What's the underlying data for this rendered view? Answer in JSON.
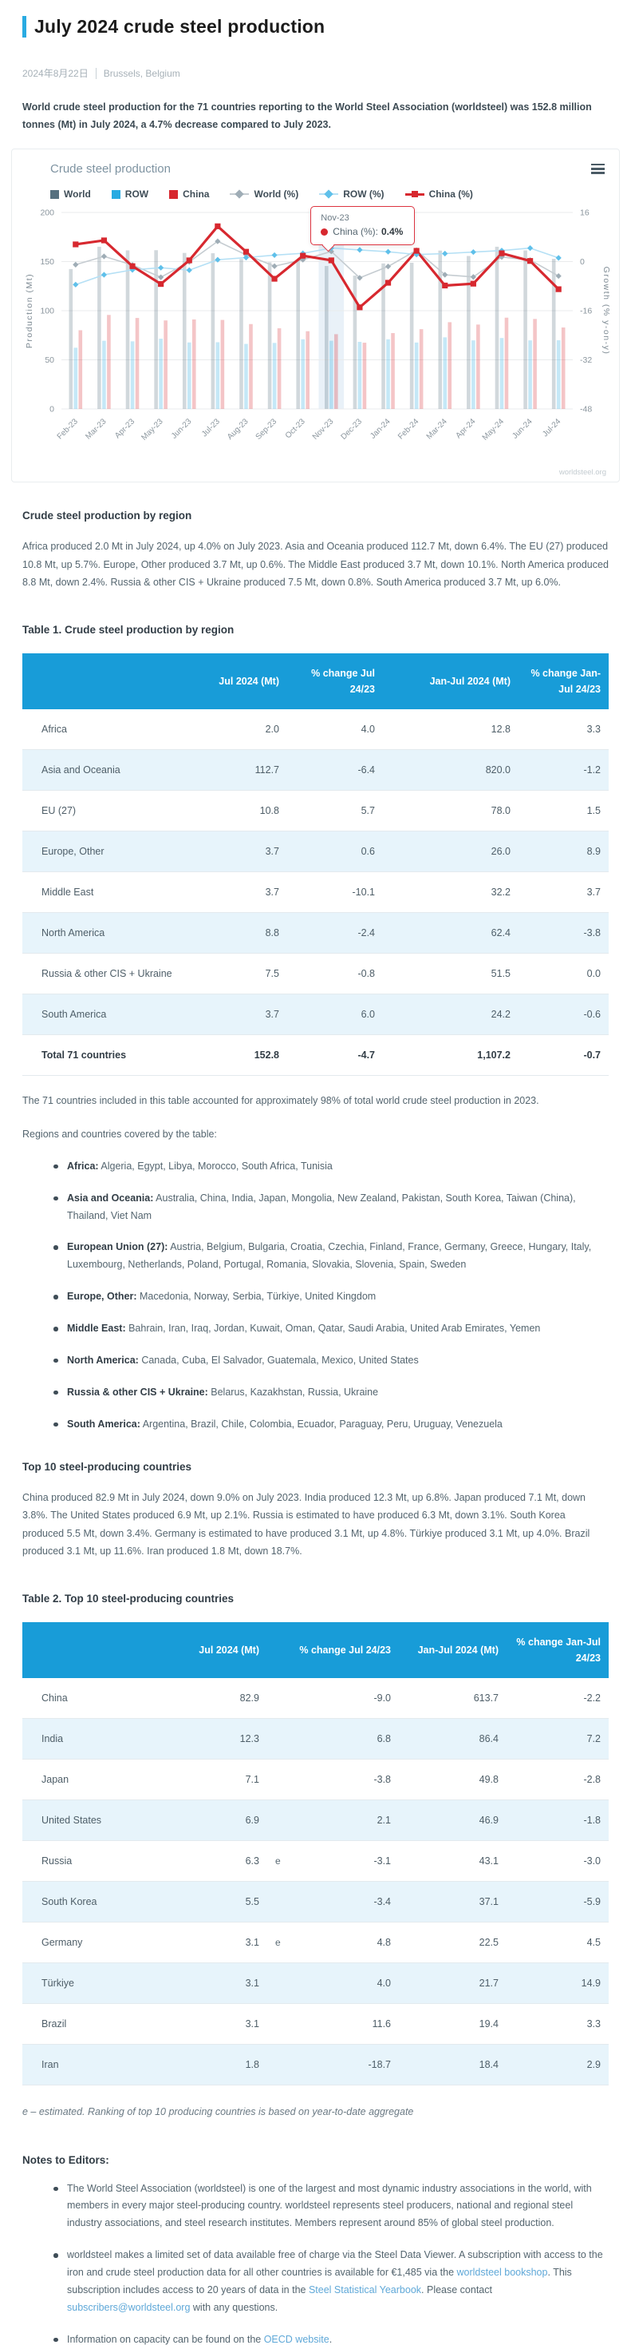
{
  "header": {
    "title": "July 2024 crude steel production",
    "date": "2024年8月22日",
    "location": "Brussels, Belgium"
  },
  "intro": "World crude steel production for the 71 countries reporting to the World Steel Association (worldsteel) was 152.8 million tonnes (Mt) in July 2024, a 4.7% decrease compared to July 2023.",
  "chart_data": {
    "type": "bar+line",
    "title": "Crude steel production",
    "categories": [
      "Feb-23",
      "Mar-23",
      "Apr-23",
      "May-23",
      "Jun-23",
      "Jul-23",
      "Aug-23",
      "Sep-23",
      "Oct-23",
      "Nov-23",
      "Dec-23",
      "Jan-24",
      "Feb-24",
      "Mar-24",
      "Apr-24",
      "May-24",
      "Jun-24",
      "Jul-24"
    ],
    "bar_series": [
      {
        "name": "World",
        "color": "#56707f",
        "values": [
          142.4,
          165.1,
          161.4,
          161.6,
          158.8,
          158.5,
          152.6,
          149.3,
          150.0,
          145.5,
          135.7,
          148.1,
          148.8,
          161.2,
          155.7,
          165.1,
          161.4,
          152.8
        ]
      },
      {
        "name": "ROW",
        "color": "#29abe2",
        "values": [
          62.3,
          69.4,
          68.8,
          71.5,
          67.7,
          67.9,
          66.2,
          67.2,
          70.9,
          69.4,
          68.3,
          70.9,
          67.6,
          72.9,
          69.8,
          72.2,
          69.8,
          69.9
        ]
      },
      {
        "name": "China",
        "color": "#d7282f",
        "values": [
          80.1,
          95.7,
          92.6,
          90.1,
          91.1,
          90.6,
          86.4,
          82.1,
          79.1,
          76.1,
          67.4,
          77.2,
          81.2,
          88.3,
          85.9,
          92.9,
          91.6,
          82.9
        ]
      }
    ],
    "line_series": [
      {
        "name": "World (%)",
        "color": "#c5ccd1",
        "marker": "#9fadb6",
        "marker_shape": "diamond",
        "values": [
          -1.0,
          1.7,
          -1.1,
          -5.1,
          -0.1,
          6.6,
          2.2,
          -1.5,
          0.6,
          3.3,
          -5.3,
          -1.6,
          3.7,
          -4.3,
          -5.0,
          1.5,
          0.5,
          -4.7
        ]
      },
      {
        "name": "ROW (%)",
        "color": "#b5e0f5",
        "marker": "#5fc0ea",
        "marker_shape": "diamond",
        "values": [
          -7.5,
          -4.3,
          -2.7,
          -2.0,
          -2.8,
          0.6,
          1.3,
          2.1,
          2.7,
          4.4,
          3.8,
          3.2,
          2.3,
          2.6,
          3.1,
          3.6,
          4.4,
          1.2
        ]
      },
      {
        "name": "China (%)",
        "color": "#d7282f",
        "marker": "#d7282f",
        "marker_shape": "square",
        "values": [
          5.6,
          6.9,
          -1.5,
          -7.3,
          0.4,
          11.5,
          3.2,
          -5.6,
          1.9,
          0.4,
          -14.9,
          -6.9,
          3.5,
          -7.8,
          -7.2,
          2.7,
          0.2,
          -9.0
        ]
      }
    ],
    "left_axis": {
      "label": "Production (Mt)",
      "ticks": [
        0,
        50,
        100,
        150,
        200
      ],
      "range": [
        0,
        200
      ]
    },
    "right_axis": {
      "label": "Growth (% y-on-y)",
      "ticks": [
        -48,
        -32,
        -16,
        0,
        16
      ],
      "range": [
        -48,
        16
      ]
    },
    "highlight_category": "Nov-23",
    "tooltip": {
      "title": "Nov-23",
      "series_label": "China (%):",
      "value": "0.4%"
    },
    "watermark": "worldsteel.org"
  },
  "sections": {
    "region": {
      "heading": "Crude steel production by region",
      "body": "Africa produced 2.0 Mt in July 2024, up 4.0% on July 2023. Asia and Oceania produced 112.7 Mt, down 6.4%. The EU (27) produced 10.8 Mt, up 5.7%. Europe, Other produced 3.7 Mt, up 0.6%. The Middle East produced 3.7 Mt, down 10.1%. North America produced 8.8 Mt, down 2.4%. Russia & other CIS + Ukraine produced 7.5 Mt, down 0.8%. South America produced 3.7 Mt, up 6.0%."
    },
    "top10": {
      "heading": "Top 10 steel-producing countries",
      "body": "China produced 82.9 Mt in July 2024, down 9.0% on July 2023. India produced 12.3 Mt, up 6.8%. Japan produced 7.1 Mt, down 3.8%. The United States produced 6.9 Mt, up 2.1%. Russia is estimated to have produced 6.3 Mt, down 3.1%. South Korea produced 5.5 Mt, down 3.4%. Germany is estimated to have produced 3.1 Mt, up 4.8%. Türkiye produced 3.1 Mt, up 4.0%. Brazil produced 3.1 Mt, up 11.6%. Iran produced 1.8 Mt, down 18.7%."
    }
  },
  "table1": {
    "title": "Table 1. Crude steel production by region",
    "columns": [
      "",
      "Jul 2024 (Mt)",
      "% change Jul 24/23",
      "Jan-Jul 2024 (Mt)",
      "% change Jan-Jul 24/23"
    ],
    "rows": [
      [
        "Africa",
        "2.0",
        "4.0",
        "12.8",
        "3.3"
      ],
      [
        "Asia and Oceania",
        "112.7",
        "-6.4",
        "820.0",
        "-1.2"
      ],
      [
        "EU (27)",
        "10.8",
        "5.7",
        "78.0",
        "1.5"
      ],
      [
        "Europe, Other",
        "3.7",
        "0.6",
        "26.0",
        "8.9"
      ],
      [
        "Middle East",
        "3.7",
        "-10.1",
        "32.2",
        "3.7"
      ],
      [
        "North America",
        "8.8",
        "-2.4",
        "62.4",
        "-3.8"
      ],
      [
        "Russia & other CIS + Ukraine",
        "7.5",
        "-0.8",
        "51.5",
        "0.0"
      ],
      [
        "South America",
        "3.7",
        "6.0",
        "24.2",
        "-0.6"
      ]
    ],
    "total": [
      "Total 71 countries",
      "152.8",
      "-4.7",
      "1,107.2",
      "-0.7"
    ],
    "footnote": "The 71 countries included in this table accounted for approximately 98% of total world crude steel production in 2023."
  },
  "regions": {
    "intro": "Regions and countries covered by the table:",
    "items": [
      {
        "label": "Africa:",
        "text": " Algeria, Egypt, Libya, Morocco, South Africa, Tunisia"
      },
      {
        "label": "Asia and Oceania:",
        "text": " Australia, China, India, Japan, Mongolia, New Zealand, Pakistan, South Korea, Taiwan (China), Thailand, Viet Nam"
      },
      {
        "label": "European Union (27):",
        "text": " Austria, Belgium, Bulgaria, Croatia, Czechia, Finland, France, Germany, Greece, Hungary, Italy, Luxembourg, Netherlands, Poland, Portugal, Romania, Slovakia, Slovenia, Spain, Sweden"
      },
      {
        "label": "Europe, Other:",
        "text": " Macedonia, Norway, Serbia, Türkiye, United Kingdom"
      },
      {
        "label": "Middle East:",
        "text": " Bahrain, Iran, Iraq, Jordan, Kuwait, Oman, Qatar, Saudi Arabia, United Arab Emirates, Yemen"
      },
      {
        "label": "North America:",
        "text": " Canada, Cuba, El Salvador, Guatemala, Mexico, United States"
      },
      {
        "label": "Russia & other CIS + Ukraine:",
        "text": " Belarus, Kazakhstan, Russia, Ukraine"
      },
      {
        "label": "South America:",
        "text": " Argentina, Brazil, Chile, Colombia, Ecuador, Paraguay, Peru, Uruguay, Venezuela"
      }
    ]
  },
  "table2": {
    "title": "Table 2. Top 10 steel-producing countries",
    "columns": [
      "",
      "Jul 2024 (Mt)",
      "% change Jul 24/23",
      "Jan-Jul 2024 (Mt)",
      "% change Jan-Jul 24/23"
    ],
    "rows": [
      {
        "name": "China",
        "jul": "82.9",
        "e": false,
        "chg": "-9.0",
        "ytd": "613.7",
        "ytd_chg": "-2.2"
      },
      {
        "name": "India",
        "jul": "12.3",
        "e": false,
        "chg": "6.8",
        "ytd": "86.4",
        "ytd_chg": "7.2"
      },
      {
        "name": "Japan",
        "jul": "7.1",
        "e": false,
        "chg": "-3.8",
        "ytd": "49.8",
        "ytd_chg": "-2.8"
      },
      {
        "name": "United States",
        "jul": "6.9",
        "e": false,
        "chg": "2.1",
        "ytd": "46.9",
        "ytd_chg": "-1.8"
      },
      {
        "name": "Russia",
        "jul": "6.3",
        "e": true,
        "chg": "-3.1",
        "ytd": "43.1",
        "ytd_chg": "-3.0"
      },
      {
        "name": "South Korea",
        "jul": "5.5",
        "e": false,
        "chg": "-3.4",
        "ytd": "37.1",
        "ytd_chg": "-5.9"
      },
      {
        "name": "Germany",
        "jul": "3.1",
        "e": true,
        "chg": "4.8",
        "ytd": "22.5",
        "ytd_chg": "4.5"
      },
      {
        "name": "Türkiye",
        "jul": "3.1",
        "e": false,
        "chg": "4.0",
        "ytd": "21.7",
        "ytd_chg": "14.9"
      },
      {
        "name": "Brazil",
        "jul": "3.1",
        "e": false,
        "chg": "11.6",
        "ytd": "19.4",
        "ytd_chg": "3.3"
      },
      {
        "name": "Iran",
        "jul": "1.8",
        "e": false,
        "chg": "-18.7",
        "ytd": "18.4",
        "ytd_chg": "2.9"
      }
    ],
    "note": "e – estimated. Ranking of top 10 producing countries is based on year-to-date aggregate"
  },
  "notes": {
    "heading": "Notes to Editors:",
    "bullets": [
      [
        {
          "t": "The World Steel Association (worldsteel) is one of the largest and most dynamic industry associations in the world, with members in every major steel-producing country. worldsteel represents steel producers, national and regional steel industry associations, and steel research institutes. Members represent around 85% of global steel production."
        }
      ],
      [
        {
          "t": "worldsteel makes a limited set of data available free of charge via the Steel Data Viewer. A subscription with access to the iron and crude steel production data for all other countries is available for €1,485  via the "
        },
        {
          "t": "worldsteel bookshop",
          "link": true
        },
        {
          "t": ". This subscription includes access to 20 years of data in the "
        },
        {
          "t": "Steel Statistical Yearbook",
          "link": true
        },
        {
          "t": ". Please contact "
        },
        {
          "t": "subscribers@worldsteel.org",
          "link": true
        },
        {
          "t": " with any questions."
        }
      ],
      [
        {
          "t": "Information on capacity can be found on the "
        },
        {
          "t": "OECD website",
          "link": true
        },
        {
          "t": "."
        }
      ]
    ]
  }
}
